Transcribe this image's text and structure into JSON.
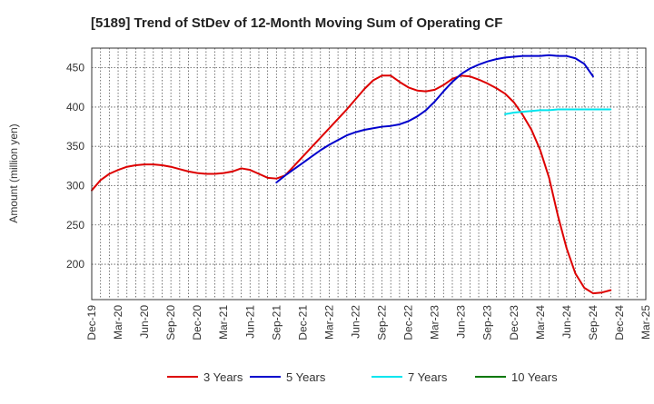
{
  "chart_data": {
    "type": "line",
    "title": "[5189]  Trend of StDev of 12-Month Moving Sum of Operating CF",
    "xlabel": "",
    "ylabel": "Amount (million yen)",
    "ylim": [
      155,
      475
    ],
    "yticks": [
      200,
      250,
      300,
      350,
      400,
      450
    ],
    "x_tick_labels": [
      "Dec-19",
      "Mar-20",
      "Jun-20",
      "Sep-20",
      "Dec-20",
      "Mar-21",
      "Jun-21",
      "Sep-21",
      "Dec-21",
      "Mar-22",
      "Jun-22",
      "Sep-22",
      "Dec-22",
      "Mar-23",
      "Jun-23",
      "Sep-23",
      "Dec-23",
      "Mar-24",
      "Jun-24",
      "Sep-24",
      "Dec-24",
      "Mar-25"
    ],
    "grid": true,
    "legend_position": "bottom",
    "series": [
      {
        "name": "3 Years",
        "color": "#dd0000",
        "start_index": 0,
        "values": [
          294,
          307,
          315,
          320,
          324,
          326,
          327,
          327,
          326,
          324,
          321,
          318,
          316,
          315,
          315,
          316,
          318,
          322,
          320,
          315,
          310,
          309,
          313,
          325,
          337,
          349,
          361,
          373,
          385,
          397,
          410,
          423,
          434,
          440,
          440,
          432,
          425,
          421,
          420,
          422,
          428,
          436,
          440,
          439,
          435,
          430,
          424,
          417,
          406,
          390,
          371,
          345,
          310,
          262,
          220,
          188,
          170,
          163,
          164,
          167
        ]
      },
      {
        "name": "5 Years",
        "color": "#0000cc",
        "start_index": 21,
        "values": [
          304,
          313,
          321,
          329,
          337,
          345,
          352,
          358,
          364,
          368,
          371,
          373,
          375,
          376,
          378,
          382,
          388,
          396,
          407,
          420,
          432,
          442,
          449,
          454,
          458,
          461,
          463,
          464,
          465,
          465,
          465,
          466,
          465,
          465,
          462,
          455,
          439
        ]
      },
      {
        "name": "7 Years",
        "color": "#00e5ee",
        "start_index": 47,
        "values": [
          391,
          393,
          394,
          395,
          396,
          396,
          397,
          397,
          397,
          397,
          397,
          397,
          397
        ]
      },
      {
        "name": "10 Years",
        "color": "#007700",
        "start_index": 0,
        "values": []
      }
    ]
  }
}
